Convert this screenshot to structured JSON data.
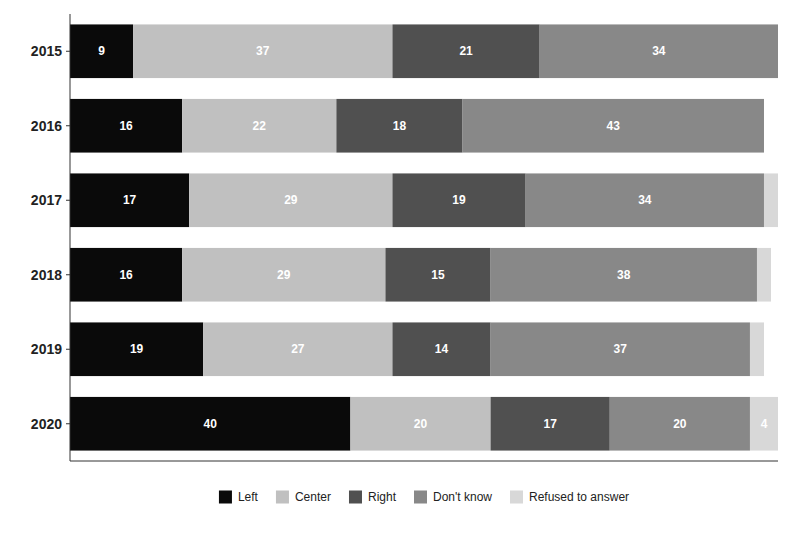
{
  "chart_data": {
    "type": "bar",
    "orientation": "horizontal",
    "stacked": true,
    "categories": [
      "2015",
      "2016",
      "2017",
      "2018",
      "2019",
      "2020"
    ],
    "series": [
      {
        "name": "Left",
        "color": "#0a0a0a",
        "values": [
          9,
          16,
          17,
          16,
          19,
          40
        ]
      },
      {
        "name": "Center",
        "color": "#c0c0c0",
        "values": [
          37,
          22,
          29,
          29,
          27,
          20
        ]
      },
      {
        "name": "Right",
        "color": "#505050",
        "values": [
          21,
          18,
          19,
          15,
          14,
          17
        ]
      },
      {
        "name": "Don't know",
        "color": "#888888",
        "values": [
          34,
          43,
          34,
          38,
          37,
          20
        ]
      },
      {
        "name": "Refused to answer",
        "color": "#d8d8d8",
        "values": [
          0,
          0,
          2,
          2,
          2,
          4
        ]
      }
    ],
    "xlim": [
      0,
      101
    ],
    "data_labels": true,
    "tick_labels": "y",
    "grid": false,
    "legend": "bottom"
  }
}
